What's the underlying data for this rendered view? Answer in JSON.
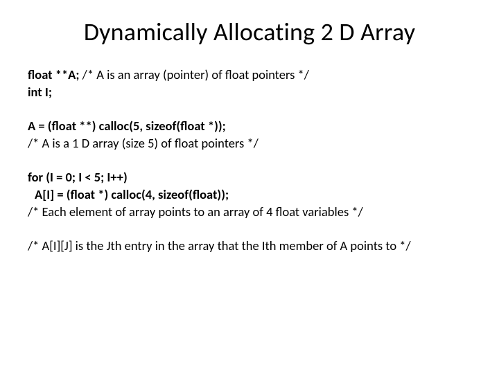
{
  "title": "Dynamically Allocating 2 D Array",
  "decl": {
    "line1_bold": "float **A;",
    "line1_rest": "  /* A is an array (pointer) of float pointers */",
    "line2": "int I;"
  },
  "alloc": {
    "line1": "A = (float **) calloc(5, sizeof(float *));",
    "line2": "/* A is a 1 D array (size 5) of float pointers */"
  },
  "loop": {
    "line1": "for (I = 0; I < 5; I++)",
    "line2": "A[I] = (float *) calloc(4, sizeof(float));",
    "line3": "/* Each element of array points to an array of 4 float variables */"
  },
  "final": {
    "line1": "/* A[I][J] is the Jth entry in the array that the Ith member of A points to */"
  }
}
